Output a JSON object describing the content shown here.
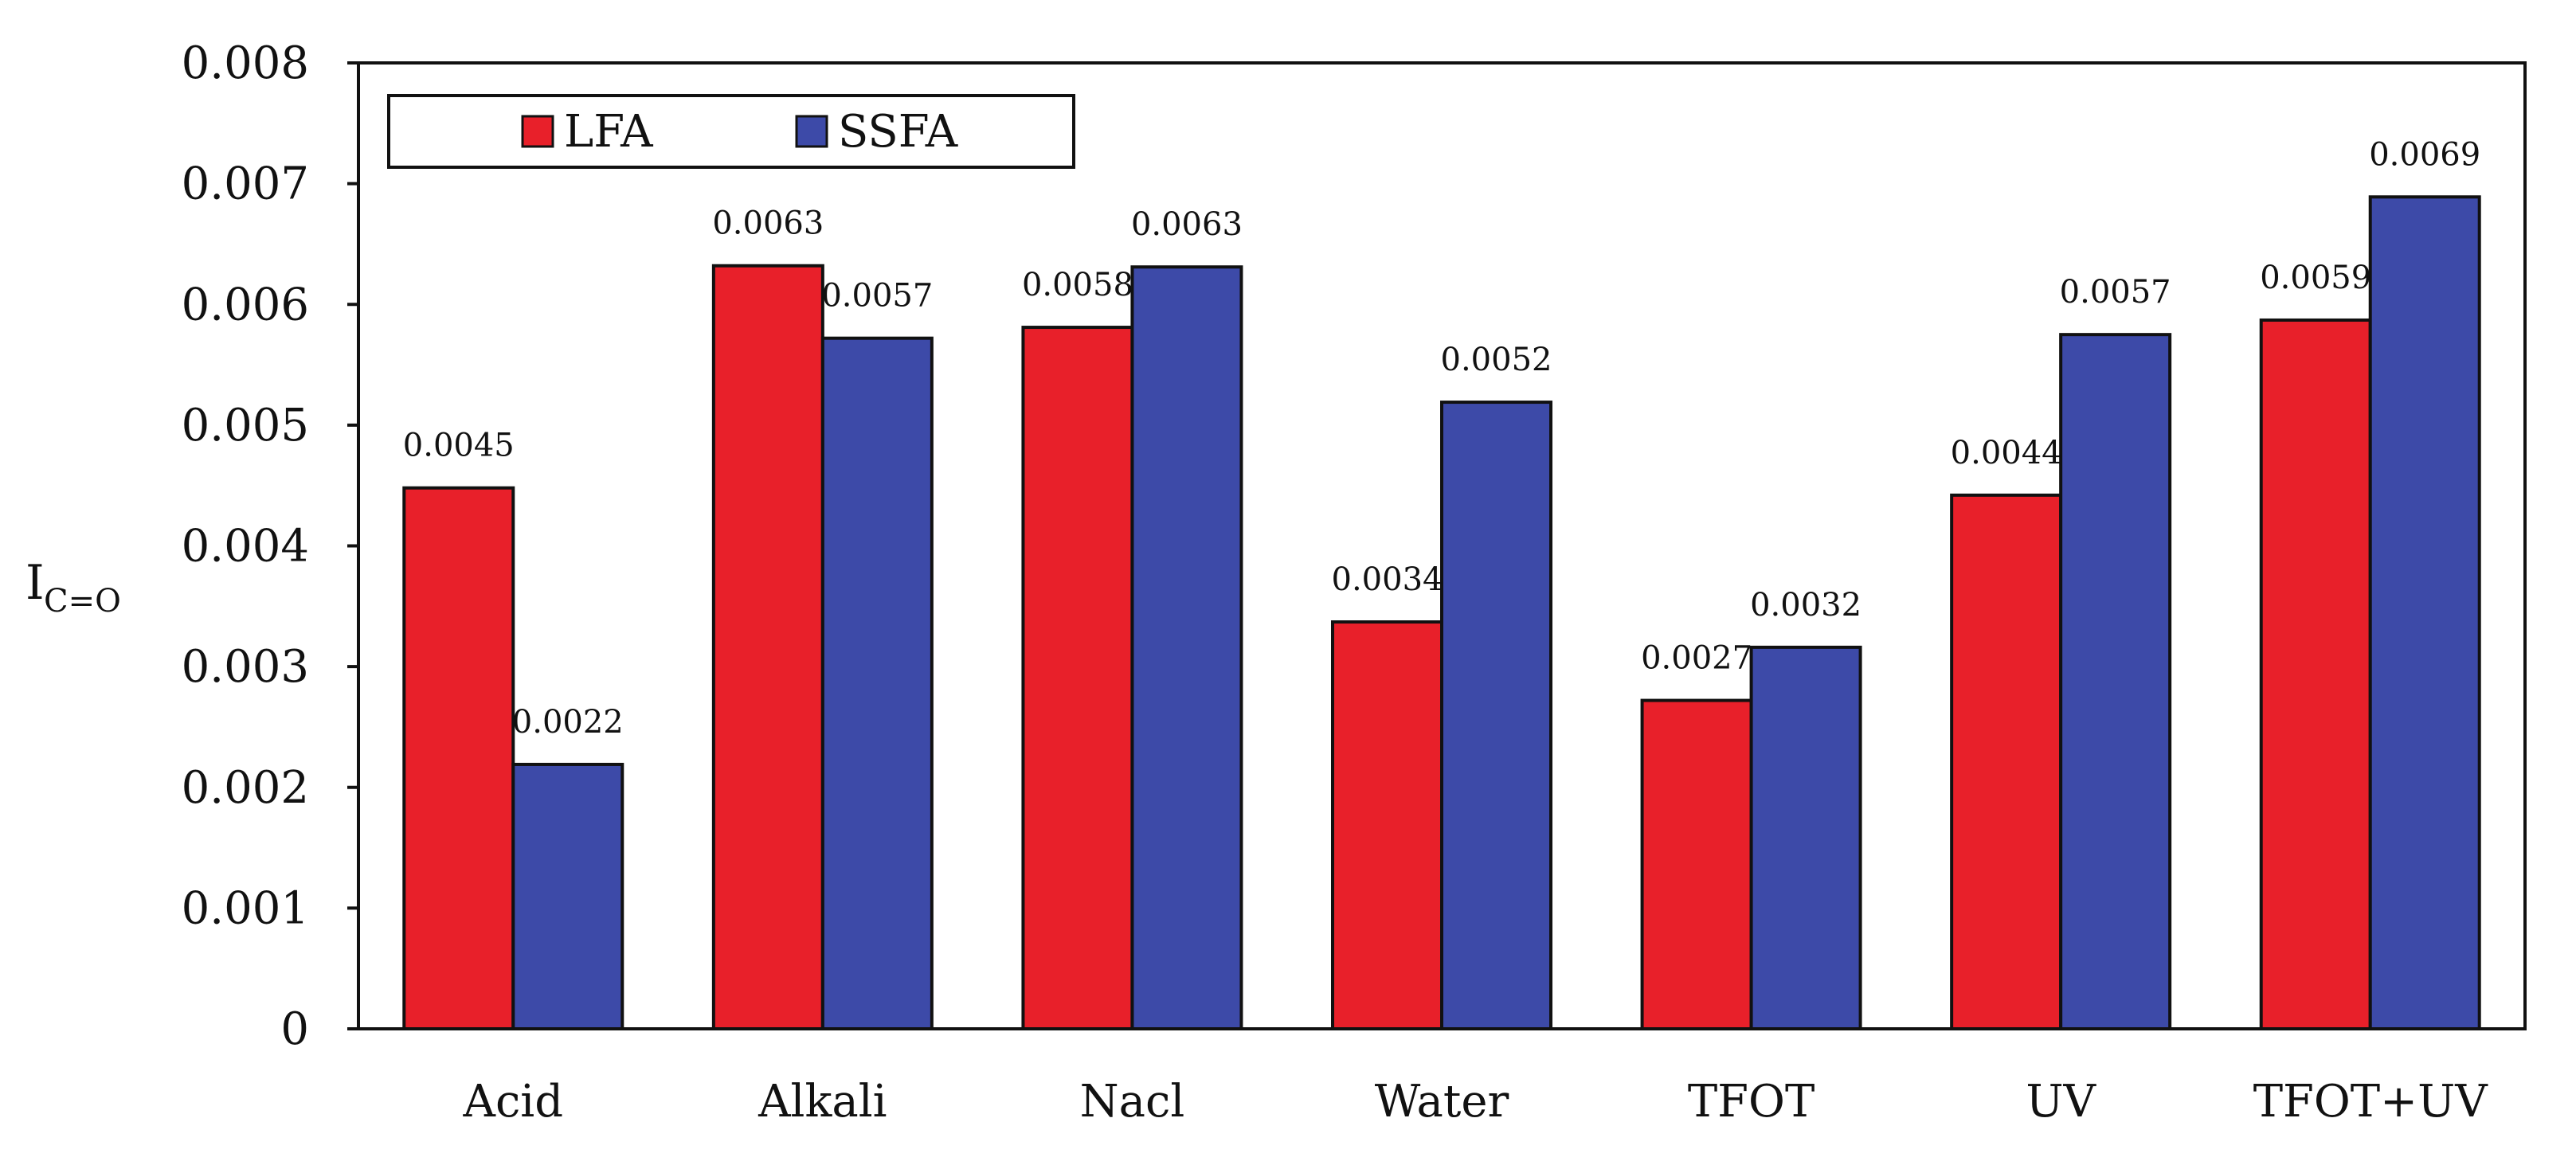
{
  "chart_data": {
    "type": "bar",
    "title": "",
    "xlabel": "",
    "ylabel": "I",
    "ylabel_subscript": "C=O",
    "ylim": [
      0,
      0.008
    ],
    "yticks": [
      "0",
      "0.001",
      "0.002",
      "0.003",
      "0.004",
      "0.005",
      "0.006",
      "0.007",
      "0.008"
    ],
    "ytick_values": [
      0,
      0.001,
      0.002,
      0.003,
      0.004,
      0.005,
      0.006,
      0.007,
      0.008
    ],
    "categories": [
      "Acid",
      "Alkali",
      "Nacl",
      "Water",
      "TFOT",
      "UV",
      "TFOT+UV"
    ],
    "series": [
      {
        "name": "LFA",
        "color": "#e8202a",
        "values": [
          0.00448,
          0.00632,
          0.00581,
          0.00337,
          0.00272,
          0.00442,
          0.00587
        ],
        "labels": [
          "0.0045",
          "0.0063",
          "0.0058",
          "0.0034",
          "0.0027",
          "0.0044",
          "0.0059"
        ]
      },
      {
        "name": "SSFA",
        "color": "#3d4aa8",
        "values": [
          0.00219,
          0.00572,
          0.00631,
          0.00519,
          0.00316,
          0.00575,
          0.00689
        ],
        "labels": [
          "0.0022",
          "0.0057",
          "0.0063",
          "0.0052",
          "0.0032",
          "0.0057",
          "0.0069"
        ]
      }
    ],
    "legend": {
      "position": "top-left",
      "entries": [
        "LFA",
        "SSFA"
      ]
    },
    "grid": false
  }
}
